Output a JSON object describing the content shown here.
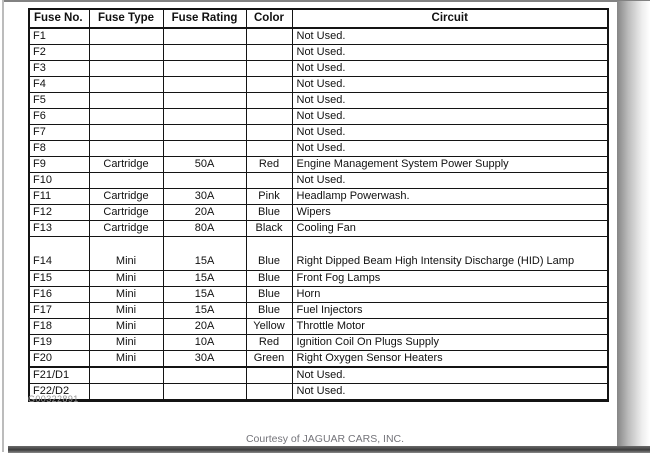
{
  "page": {
    "artifact_id": "G00322891",
    "courtesy_line": "Courtesy of JAGUAR CARS, INC."
  },
  "table": {
    "columns": [
      "Fuse No.",
      "Fuse Type",
      "Fuse Rating",
      "Color",
      "Circuit"
    ],
    "rows": [
      {
        "fuse_no": "F1",
        "fuse_type": "",
        "fuse_rating": "",
        "color": "",
        "circuit": "Not Used."
      },
      {
        "fuse_no": "F2",
        "fuse_type": "",
        "fuse_rating": "",
        "color": "",
        "circuit": "Not Used."
      },
      {
        "fuse_no": "F3",
        "fuse_type": "",
        "fuse_rating": "",
        "color": "",
        "circuit": "Not Used."
      },
      {
        "fuse_no": "F4",
        "fuse_type": "",
        "fuse_rating": "",
        "color": "",
        "circuit": "Not Used."
      },
      {
        "fuse_no": "F5",
        "fuse_type": "",
        "fuse_rating": "",
        "color": "",
        "circuit": "Not Used."
      },
      {
        "fuse_no": "F6",
        "fuse_type": "",
        "fuse_rating": "",
        "color": "",
        "circuit": "Not Used."
      },
      {
        "fuse_no": "F7",
        "fuse_type": "",
        "fuse_rating": "",
        "color": "",
        "circuit": "Not Used."
      },
      {
        "fuse_no": "F8",
        "fuse_type": "",
        "fuse_rating": "",
        "color": "",
        "circuit": "Not Used."
      },
      {
        "fuse_no": "F9",
        "fuse_type": "Cartridge",
        "fuse_rating": "50A",
        "color": "Red",
        "circuit": "Engine Management System Power Supply"
      },
      {
        "fuse_no": "F10",
        "fuse_type": "",
        "fuse_rating": "",
        "color": "",
        "circuit": "Not Used."
      },
      {
        "fuse_no": "F11",
        "fuse_type": "Cartridge",
        "fuse_rating": "30A",
        "color": "Pink",
        "circuit": "Headlamp Powerwash."
      },
      {
        "fuse_no": "F12",
        "fuse_type": "Cartridge",
        "fuse_rating": "20A",
        "color": "Blue",
        "circuit": "Wipers"
      },
      {
        "fuse_no": "F13",
        "fuse_type": "Cartridge",
        "fuse_rating": "80A",
        "color": "Black",
        "circuit": "Cooling Fan"
      },
      {
        "fuse_no": "F14",
        "fuse_type": "Mini",
        "fuse_rating": "15A",
        "color": "Blue",
        "circuit": "Right Dipped Beam High Intensity Discharge (HID) Lamp",
        "tall": true
      },
      {
        "fuse_no": "F15",
        "fuse_type": "Mini",
        "fuse_rating": "15A",
        "color": "Blue",
        "circuit": "Front Fog Lamps"
      },
      {
        "fuse_no": "F16",
        "fuse_type": "Mini",
        "fuse_rating": "15A",
        "color": "Blue",
        "circuit": "Horn"
      },
      {
        "fuse_no": "F17",
        "fuse_type": "Mini",
        "fuse_rating": "15A",
        "color": "Blue",
        "circuit": "Fuel Injectors"
      },
      {
        "fuse_no": "F18",
        "fuse_type": "Mini",
        "fuse_rating": "20A",
        "color": "Yellow",
        "circuit": "Throttle Motor"
      },
      {
        "fuse_no": "F19",
        "fuse_type": "Mini",
        "fuse_rating": "10A",
        "color": "Red",
        "circuit": "Ignition Coil On Plugs Supply"
      },
      {
        "fuse_no": "F20",
        "fuse_type": "Mini",
        "fuse_rating": "30A",
        "color": "Green",
        "circuit": "Right Oxygen Sensor Heaters"
      },
      {
        "fuse_no": "F21/D1",
        "fuse_type": "",
        "fuse_rating": "",
        "color": "",
        "circuit": "Not Used.",
        "section_start": true
      },
      {
        "fuse_no": "F22/D2",
        "fuse_type": "",
        "fuse_rating": "",
        "color": "",
        "circuit": "Not Used."
      }
    ]
  }
}
